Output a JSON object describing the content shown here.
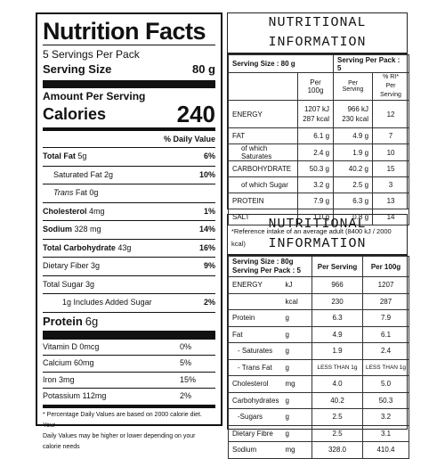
{
  "us_label": {
    "title": "Nutrition Facts",
    "servings_per_pack": "5 Servings Per Pack",
    "serving_size_label": "Serving Size",
    "serving_size_value": "80 g",
    "amount_per_serving": "Amount Per Serving",
    "calories_label": "Calories",
    "calories_value": "240",
    "daily_value_header": "% Daily Value",
    "rows": [
      {
        "bold": "Total Fat",
        "rest": " 5g",
        "pct": "6%",
        "indent": 0
      },
      {
        "bold": "",
        "rest": "Saturated Fat 2g",
        "pct": "10%",
        "indent": 1
      },
      {
        "bold": "",
        "rest": "Trans Fat 0g",
        "pct": "",
        "indent": 1,
        "italic_word": "Trans"
      },
      {
        "bold": "Cholesterol",
        "rest": " 4mg",
        "pct": "1%",
        "indent": 0
      },
      {
        "bold": "Sodium",
        "rest": " 328 mg",
        "pct": "14%",
        "indent": 0
      },
      {
        "bold": "Total Carbohydrate",
        "rest": " 43g",
        "pct": "16%",
        "indent": 0
      },
      {
        "bold": "",
        "rest": "Dietary Fiber 3g",
        "pct": "9%",
        "indent": 0
      },
      {
        "bold": "",
        "rest": "Total Sugar 3g",
        "pct": "",
        "indent": 0
      },
      {
        "bold": "",
        "rest": "1g Includes Added Sugar",
        "pct": "2%",
        "indent": 2
      }
    ],
    "protein_label": "Protein",
    "protein_value": "6g",
    "vitamins": [
      {
        "name": "Vitamin D 0mcg",
        "pct": "0%"
      },
      {
        "name": "Calcium 60mg",
        "pct": "5%"
      },
      {
        "name": "Iron 3mg",
        "pct": "15%"
      },
      {
        "name": "Potassium 112mg",
        "pct": "2%"
      }
    ],
    "footnote_1": "* Percentage Daily Values are based on 2000 calorie diet. Your",
    "footnote_2": "Daily Values may be higher or lower depending on your calorie needs"
  },
  "table1": {
    "title": "NUTRITIONAL INFORMATION",
    "serving_size": "Serving Size : 80 g",
    "serving_per_pack": "Serving Per Pack : 5",
    "col_per100": "Per 100g",
    "col_perserving": "Per Serving",
    "col_ri_1": "% RI*",
    "col_ri_2": "Per Serving",
    "rows": [
      {
        "name": "ENERGY",
        "p100": "1207 kJ\n287 kcal",
        "pserv": "966 kJ\n230 kcal",
        "ri": "12"
      },
      {
        "name": "FAT",
        "p100": "6.1 g",
        "pserv": "4.9 g",
        "ri": "7"
      },
      {
        "name": "of which Saturates",
        "p100": "2.4 g",
        "pserv": "1.9 g",
        "ri": "10",
        "sub": true
      },
      {
        "name": "CARBOHYDRATE",
        "p100": "50.3 g",
        "pserv": "40.2 g",
        "ri": "15"
      },
      {
        "name": "of which Sugar",
        "p100": "3.2 g",
        "pserv": "2.5 g",
        "ri": "3",
        "sub": true
      },
      {
        "name": "PROTEIN",
        "p100": "7.9 g",
        "pserv": "6.3 g",
        "ri": "13"
      },
      {
        "name": "SALT",
        "p100": "1.0 g",
        "pserv": "0.8 g",
        "ri": "14"
      }
    ],
    "footnote": "*Reference intake of an average adult (8400 kJ / 2000 kcal)"
  },
  "table2": {
    "title": "NUTRITIONAL INFORMATION",
    "serving_size": "Serving Size : 80g",
    "serving_per_pack": "Serving Per Pack : 5",
    "col_perserving": "Per Serving",
    "col_per100": "Per 100g",
    "rows": [
      {
        "name": "ENERGY",
        "unit": "kJ",
        "pserv": "966",
        "p100": "1207"
      },
      {
        "name": "",
        "unit": "kcal",
        "pserv": "230",
        "p100": "287"
      },
      {
        "name": "Protein",
        "unit": "g",
        "pserv": "6.3",
        "p100": "7.9"
      },
      {
        "name": "Fat",
        "unit": "g",
        "pserv": "4.9",
        "p100": "6.1"
      },
      {
        "name": "- Saturates",
        "unit": "g",
        "pserv": "1.9",
        "p100": "2.4",
        "sub": true
      },
      {
        "name": "- Trans Fat",
        "unit": "g",
        "pserv": "LESS THAN 1g",
        "p100": "LESS THAN 1g",
        "sub": true
      },
      {
        "name": "Cholesterol",
        "unit": "mg",
        "pserv": "4.0",
        "p100": "5.0"
      },
      {
        "name": "Carbohydrates",
        "unit": "g",
        "pserv": "40.2",
        "p100": "50.3"
      },
      {
        "name": "-Sugars",
        "unit": "g",
        "pserv": "2.5",
        "p100": "3.2",
        "sub": true
      },
      {
        "name": "Dietary Fibre",
        "unit": "g",
        "pserv": "2.5",
        "p100": "3.1"
      },
      {
        "name": "Sodium",
        "unit": "mg",
        "pserv": "328.0",
        "p100": "410.4"
      }
    ]
  }
}
